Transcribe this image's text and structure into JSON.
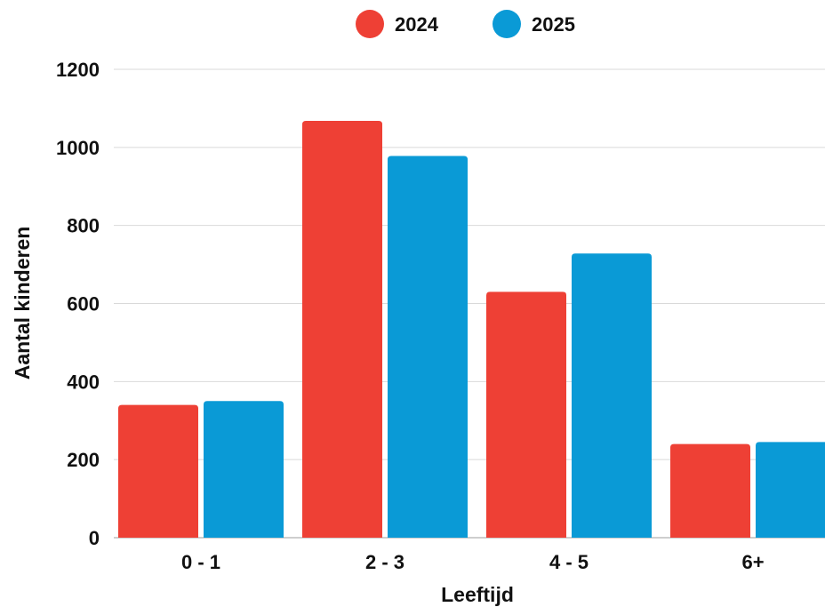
{
  "chart_data": {
    "type": "bar",
    "title": "",
    "xlabel": "Leeftijd",
    "ylabel": "Aantal kinderen",
    "categories": [
      "0 - 1",
      "2 - 3",
      "4 - 5",
      "6+"
    ],
    "series": [
      {
        "name": "2024",
        "color": "#ee4035",
        "values": [
          340,
          1068,
          630,
          240
        ]
      },
      {
        "name": "2025",
        "color": "#0a9ad6",
        "values": [
          350,
          978,
          728,
          245
        ]
      }
    ],
    "ylim": [
      0,
      1200
    ],
    "yticks": [
      "0",
      "200",
      "400",
      "600",
      "800",
      "1000",
      "1200"
    ],
    "grid": true,
    "legend_position": "top-center"
  }
}
